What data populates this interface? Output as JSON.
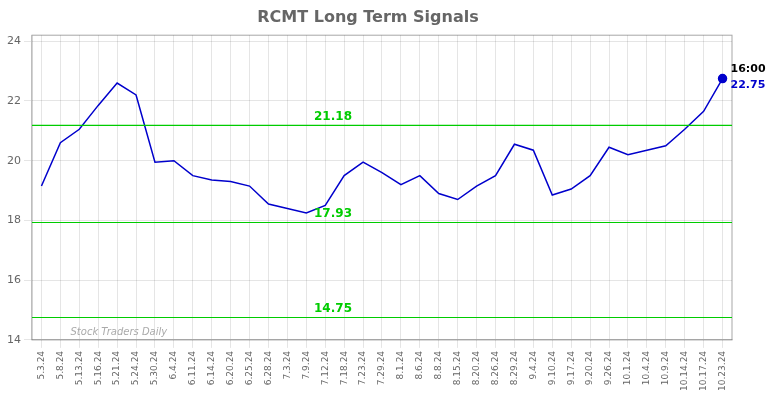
{
  "chart_data": {
    "type": "line",
    "title": "RCMT Long Term Signals",
    "categories": [
      "5.3.24",
      "5.8.24",
      "5.13.24",
      "5.16.24",
      "5.21.24",
      "5.24.24",
      "5.30.24",
      "6.4.24",
      "6.11.24",
      "6.14.24",
      "6.20.24",
      "6.25.24",
      "6.28.24",
      "7.3.24",
      "7.9.24",
      "7.12.24",
      "7.18.24",
      "7.23.24",
      "7.29.24",
      "8.1.24",
      "8.6.24",
      "8.8.24",
      "8.15.24",
      "8.20.24",
      "8.26.24",
      "8.29.24",
      "9.4.24",
      "9.10.24",
      "9.17.24",
      "9.20.24",
      "9.26.24",
      "10.1.24",
      "10.4.24",
      "10.9.24",
      "10.14.24",
      "10.17.24",
      "10.23.24"
    ],
    "values": [
      19.15,
      20.6,
      21.05,
      21.85,
      22.6,
      22.2,
      19.95,
      20.0,
      19.5,
      19.35,
      19.3,
      19.15,
      18.55,
      18.4,
      18.25,
      18.5,
      19.5,
      19.95,
      19.6,
      19.2,
      19.5,
      18.9,
      18.7,
      19.15,
      19.5,
      20.55,
      20.35,
      18.85,
      19.05,
      19.5,
      20.45,
      20.2,
      20.35,
      20.5,
      21.05,
      21.65,
      22.75
    ],
    "color": "#0000cc",
    "ylim": [
      14.0,
      24.2
    ],
    "yticks": [
      14,
      16,
      18,
      20,
      22,
      24
    ],
    "grid": true,
    "hlines": [
      {
        "y": 21.18,
        "label": "21.18",
        "color": "#00cc00"
      },
      {
        "y": 17.93,
        "label": "17.93",
        "color": "#00cc00"
      },
      {
        "y": 14.75,
        "label": "14.75",
        "color": "#00cc00"
      }
    ],
    "annotations": [
      {
        "text": "16:00",
        "x": "10.23.24",
        "y": 22.75,
        "color": "#000000"
      },
      {
        "text": "22.75",
        "x": "10.23.24",
        "y": 22.75,
        "color": "#0000cc"
      }
    ],
    "watermark": "Stock Traders Daily"
  }
}
